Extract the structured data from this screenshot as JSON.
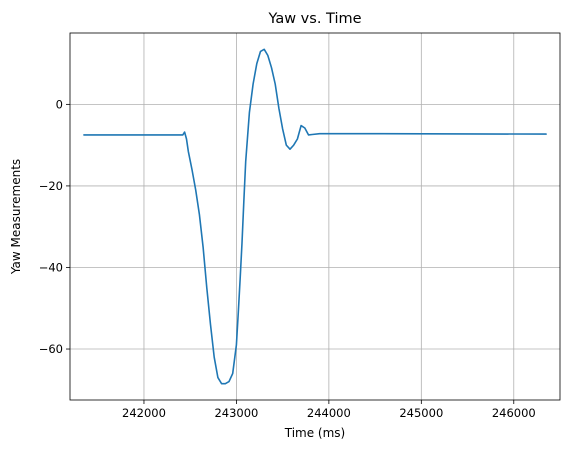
{
  "chart_data": {
    "type": "line",
    "title": "Yaw vs. Time",
    "xlabel": "Time (ms)",
    "ylabel": "Yaw Measurements",
    "xlim": [
      241200,
      246500
    ],
    "ylim": [
      -72.5,
      17.5
    ],
    "xticks": [
      242000,
      243000,
      244000,
      245000,
      246000
    ],
    "yticks": [
      0,
      -20,
      -40,
      -60
    ],
    "grid": true,
    "color": "#1f77b4",
    "series": [
      {
        "x": [
          241350,
          242000,
          242420,
          242440,
          242460,
          242480,
          242520,
          242560,
          242600,
          242640,
          242680,
          242720,
          242760,
          242800,
          242840,
          242880,
          242920,
          242960,
          243000,
          243020,
          243040,
          243060,
          243080,
          243100,
          243140,
          243180,
          243220,
          243260,
          243300,
          243340,
          243380,
          243420,
          243460,
          243500,
          243540,
          243580,
          243620,
          243660,
          243700,
          243740,
          243780,
          243820,
          243900,
          244500,
          246350
        ],
        "y": [
          -7.5,
          -7.5,
          -7.5,
          -6.8,
          -8.5,
          -11.5,
          -16,
          -21,
          -27,
          -35,
          -45,
          -54,
          -62,
          -67,
          -68.5,
          -68.5,
          -68,
          -66,
          -59,
          -51,
          -43,
          -34,
          -24,
          -14,
          -2,
          5,
          10,
          13,
          13.5,
          12,
          9,
          5,
          -1,
          -6,
          -10,
          -11,
          -10,
          -8.5,
          -5.2,
          -5.8,
          -7.5,
          -7.4,
          -7.2,
          -7.2,
          -7.3
        ]
      }
    ]
  }
}
